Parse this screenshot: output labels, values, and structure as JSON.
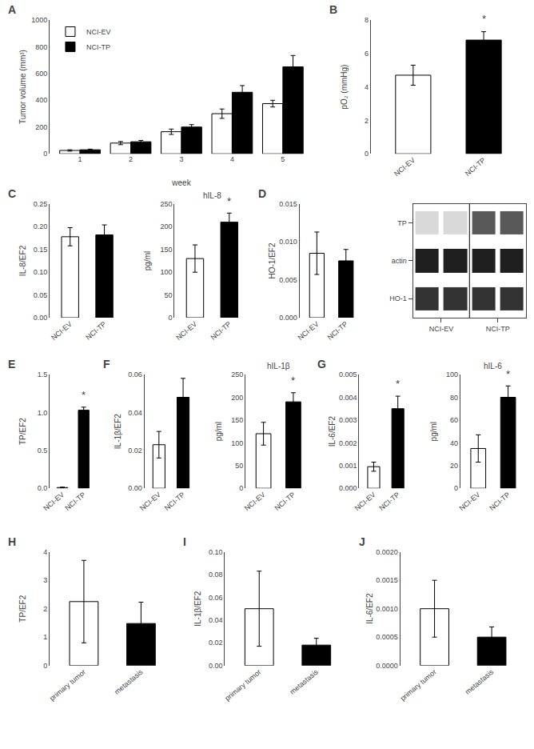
{
  "chart_data": [
    {
      "type": "bar",
      "panel_label": "A",
      "categories": [
        "1",
        "2",
        "3",
        "4",
        "5"
      ],
      "xlabel": "week",
      "ylabel": "Tumor volume (mm³)",
      "series": [
        {
          "name": "NCI-EV",
          "color": "white",
          "values": [
            25,
            80,
            165,
            300,
            375
          ],
          "errors": [
            5,
            12,
            20,
            35,
            25
          ]
        },
        {
          "name": "NCI-TP",
          "color": "black",
          "values": [
            30,
            90,
            200,
            460,
            650
          ],
          "errors": [
            5,
            10,
            18,
            50,
            85
          ]
        }
      ],
      "ylim": [
        0,
        1000
      ],
      "yticks": [
        0,
        200,
        400,
        600,
        800,
        1000
      ],
      "legend": "upper left",
      "grid": false
    },
    {
      "type": "bar",
      "panel_label": "B",
      "categories": [
        "NCI-EV",
        "NCI-TP"
      ],
      "values": [
        4.7,
        6.8
      ],
      "errors": [
        0.6,
        0.5
      ],
      "colors": [
        "white",
        "black"
      ],
      "ylabel": "pO₂ (mmHg)",
      "ylim": [
        0,
        8
      ],
      "yticks": [
        0,
        2,
        4,
        6,
        8
      ],
      "annotations": [
        {
          "category": "NCI-TP",
          "text": "*"
        }
      ],
      "grid": false
    },
    {
      "type": "bar",
      "panel_label": "C",
      "categories": [
        "NCI-EV",
        "NCI-TP"
      ],
      "values": [
        0.178,
        0.182
      ],
      "errors": [
        0.02,
        0.022
      ],
      "colors": [
        "white",
        "black"
      ],
      "ylabel": "IL-8/EF2",
      "ylim": [
        0.0,
        0.25
      ],
      "yticks": [
        {
          "value": 0,
          "label": "0.00"
        },
        0.05,
        {
          "value": 0.1,
          "label": "0.10"
        },
        0.15,
        {
          "value": 0.2,
          "label": "0.20"
        },
        0.25
      ],
      "grid": false
    },
    {
      "type": "bar",
      "title": "hIL-8",
      "categories": [
        "NCI-EV",
        "NCI-TP"
      ],
      "values": [
        130,
        210
      ],
      "errors": [
        30,
        20
      ],
      "colors": [
        "white",
        "black"
      ],
      "ylabel": "pg/ml",
      "ylim": [
        0,
        250
      ],
      "yticks": [
        0,
        50,
        100,
        150,
        200,
        250
      ],
      "annotations": [
        {
          "category": "NCI-TP",
          "text": "*"
        }
      ],
      "grid": false
    },
    {
      "type": "bar",
      "panel_label": "D",
      "categories": [
        "NCI-EV",
        "NCI-TP"
      ],
      "values": [
        0.0085,
        0.0075
      ],
      "errors": [
        0.0028,
        0.0015
      ],
      "colors": [
        "white",
        "black"
      ],
      "ylabel": "HO-1/EF2",
      "ylim": [
        0.0,
        0.015
      ],
      "yticks": [
        {
          "value": 0,
          "label": "0.000"
        },
        0.005,
        {
          "value": 0.01,
          "label": "0.010"
        },
        0.015
      ],
      "grid": false
    },
    {
      "type": "blot",
      "categories": [
        "NCI-EV",
        "NCI-EV",
        "NCI-TP",
        "NCI-TP"
      ],
      "series": [
        {
          "name": "TP",
          "values": [
            0.15,
            0.15,
            0.65,
            0.65
          ]
        },
        {
          "name": "actin",
          "values": [
            0.88,
            0.88,
            0.88,
            0.88
          ]
        },
        {
          "name": "HO-1",
          "values": [
            0.8,
            0.8,
            0.8,
            0.8
          ]
        }
      ],
      "zlim": [
        0,
        1
      ]
    },
    {
      "type": "bar",
      "panel_label": "E",
      "categories": [
        "NCI-EV",
        "NCI-TP"
      ],
      "values": [
        0.01,
        1.03
      ],
      "errors": [
        0.005,
        0.04
      ],
      "colors": [
        "white",
        "black"
      ],
      "ylabel": "TP/EF2",
      "ylim": [
        0,
        1.5
      ],
      "yticks": [
        {
          "value": 0,
          "label": "0.0"
        },
        0.5,
        {
          "value": 1,
          "label": "1.0"
        },
        1.5
      ],
      "annotations": [
        {
          "category": "NCI-TP",
          "text": "*"
        }
      ],
      "grid": false
    },
    {
      "type": "bar",
      "panel_label": "F",
      "categories": [
        "NCI-EV",
        "NCI-TP"
      ],
      "values": [
        0.023,
        0.048
      ],
      "errors": [
        0.007,
        0.01
      ],
      "colors": [
        "white",
        "black"
      ],
      "ylabel": "IL-1β/EF2",
      "ylim": [
        0.0,
        0.06
      ],
      "yticks": [
        {
          "value": 0,
          "label": "0.00"
        },
        0.02,
        0.04,
        0.06
      ],
      "annotations": [
        {
          "category": "NCI-TP",
          "text": "*"
        }
      ],
      "grid": false
    },
    {
      "type": "bar",
      "title": "hIL-1β",
      "categories": [
        "NCI-EV",
        "NCI-TP"
      ],
      "values": [
        120,
        190
      ],
      "errors": [
        25,
        20
      ],
      "colors": [
        "white",
        "black"
      ],
      "ylabel": "pg/ml",
      "ylim": [
        0,
        250
      ],
      "yticks": [
        0,
        50,
        100,
        150,
        200,
        250
      ],
      "annotations": [
        {
          "category": "NCI-TP",
          "text": "*"
        }
      ],
      "grid": false
    },
    {
      "type": "bar",
      "panel_label": "G",
      "categories": [
        "NCI-EV",
        "NCI-TP"
      ],
      "values": [
        0.00095,
        0.0035
      ],
      "errors": [
        0.0002,
        0.00055
      ],
      "colors": [
        "white",
        "black"
      ],
      "ylabel": "IL-6/EF2",
      "ylim": [
        0.0,
        0.005
      ],
      "yticks": [
        {
          "value": 0,
          "label": "0.000"
        },
        0.001,
        0.002,
        0.003,
        0.004,
        0.005
      ],
      "annotations": [
        {
          "category": "NCI-TP",
          "text": "*"
        }
      ],
      "grid": false
    },
    {
      "type": "bar",
      "title": "hIL-6",
      "categories": [
        "NCI-EV",
        "NCI-TP"
      ],
      "values": [
        35,
        80
      ],
      "errors": [
        12,
        10
      ],
      "colors": [
        "white",
        "black"
      ],
      "ylabel": "pg/ml",
      "ylim": [
        0,
        100
      ],
      "yticks": [
        0,
        20,
        40,
        60,
        80,
        100
      ],
      "annotations": [
        {
          "category": "NCI-TP",
          "text": "*"
        }
      ],
      "grid": false
    },
    {
      "type": "bar",
      "panel_label": "H",
      "categories": [
        "primary tumor",
        "metastasis"
      ],
      "values": [
        2.25,
        1.48
      ],
      "errors": [
        1.45,
        0.75
      ],
      "colors": [
        "white",
        "black"
      ],
      "ylabel": "TP/EF2",
      "ylim": [
        0,
        4
      ],
      "yticks": [
        0,
        1,
        2,
        3,
        4
      ],
      "grid": false
    },
    {
      "type": "bar",
      "panel_label": "I",
      "categories": [
        "primary tumor",
        "metastasis"
      ],
      "values": [
        0.05,
        0.018
      ],
      "errors": [
        0.033,
        0.006
      ],
      "colors": [
        "white",
        "black"
      ],
      "ylabel": "IL-1β/EF2",
      "ylim": [
        0.0,
        0.1
      ],
      "yticks": [
        {
          "value": 0,
          "label": "0.00"
        },
        0.02,
        0.04,
        0.06,
        0.08,
        {
          "value": 0.1,
          "label": "0.10"
        }
      ],
      "grid": false
    },
    {
      "type": "bar",
      "panel_label": "J",
      "categories": [
        "primary tumor",
        "metastasis"
      ],
      "values": [
        0.001,
        0.0005
      ],
      "errors": [
        0.0005,
        0.00018
      ],
      "colors": [
        "white",
        "black"
      ],
      "ylabel": "IL-6/EF2",
      "ylim": [
        0.0,
        0.002
      ],
      "yticks": [
        {
          "value": 0,
          "label": "0.0000"
        },
        0.0005,
        {
          "value": 0.001,
          "label": "0.0010"
        },
        0.0015,
        {
          "value": 0.002,
          "label": "0.0020"
        }
      ],
      "grid": false
    }
  ]
}
